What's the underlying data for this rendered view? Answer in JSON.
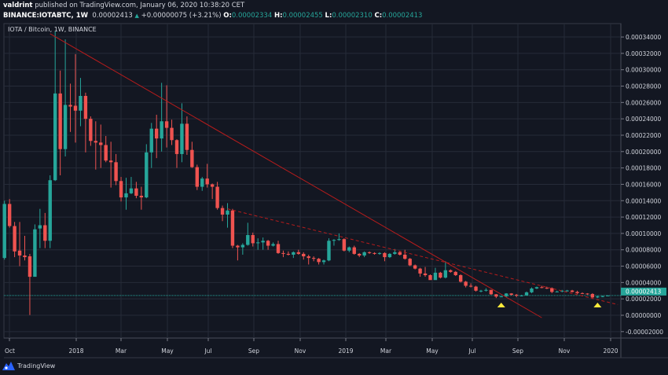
{
  "header": {
    "author": "valdrint",
    "published_text": "published on TradingView.com, January 06, 2020 10:38:20 CET",
    "symbol": "BINANCE:IOTABTC, 1W",
    "last_price": "0.00002413",
    "change_arrow": "▲",
    "change": "+0.00000075 (+3.21%)",
    "ohlc": [
      {
        "label": "O:",
        "value": "0.00002334"
      },
      {
        "label": "H:",
        "value": "0.00002455"
      },
      {
        "label": "L:",
        "value": "0.00002310"
      },
      {
        "label": "C:",
        "value": "0.00002413"
      }
    ]
  },
  "chart_legend": "IOTA / Bitcoin, 1W, BINANCE",
  "footer": {
    "brand": "TradingView"
  },
  "colors": {
    "background": "#131722",
    "up": "#26a69a",
    "down": "#ef5350",
    "trendline": "#b71c1c",
    "marker": "#ffeb3b",
    "grid": "#262b38"
  },
  "chart_data": {
    "type": "candlestick",
    "interval": "1W",
    "grid": true,
    "price_axis": {
      "position": "right",
      "range": [
        -2e-05,
        0.00035
      ],
      "ticks": [
        "0.00034000",
        "0.00032000",
        "0.00030000",
        "0.00028000",
        "0.00026000",
        "0.00024000",
        "0.00022000",
        "0.00020000",
        "0.00018000",
        "0.00016000",
        "0.00014000",
        "0.00012000",
        "0.00010000",
        "0.00008000",
        "0.00006000",
        "0.00004000",
        "0.00002000",
        "0.00000000",
        "-0.00002000"
      ]
    },
    "current_price_label": "0.00002413",
    "time_axis": {
      "ticks": [
        "Oct",
        "2018",
        "Mar",
        "May",
        "Jul",
        "Sep",
        "Nov",
        "2019",
        "Mar",
        "May",
        "Jul",
        "Sep",
        "Nov",
        "2020"
      ]
    },
    "ohlc": [
      [
        7e-05,
        0.00014,
        6.8e-05,
        0.000136
      ],
      [
        0.000136,
        0.000142,
        0.000107,
        0.000109
      ],
      [
        0.000109,
        0.000114,
        7.1e-05,
        7.8e-05
      ],
      [
        7.9e-05,
        0.000114,
        6e-05,
        7.3e-05
      ],
      [
        7.3e-05,
        9.7e-05,
        6.7e-05,
        7.1e-05
      ],
      [
        7.2e-05,
        7.5e-05,
        3e-07,
        4.7e-05
      ],
      [
        4.7e-05,
        0.000111,
        4.7e-05,
        0.000105
      ],
      [
        0.000106,
        0.00013,
        8.2e-05,
        0.00011
      ],
      [
        0.00011,
        0.000125,
        8.2e-05,
        9.1e-05
      ],
      [
        9.1e-05,
        0.000171,
        8.2e-05,
        0.000165
      ],
      [
        0.000165,
        0.000347,
        0.000164,
        0.000271
      ],
      [
        0.000271,
        0.000299,
        0.000171,
        0.000203
      ],
      [
        0.000203,
        0.000337,
        0.000194,
        0.000257
      ],
      [
        0.000257,
        0.000283,
        0.000224,
        0.000255
      ],
      [
        0.000256,
        0.000319,
        0.000211,
        0.00025
      ],
      [
        0.00025,
        0.00029,
        0.000231,
        0.000268
      ],
      [
        0.000268,
        0.000272,
        0.000199,
        0.00024
      ],
      [
        0.00024,
        0.000243,
        0.000207,
        0.000213
      ],
      [
        0.000213,
        0.000237,
        0.000178,
        0.000211
      ],
      [
        0.000211,
        0.000233,
        0.00018,
        0.000208
      ],
      [
        0.000208,
        0.000219,
        0.000187,
        0.000189
      ],
      [
        0.000189,
        0.000212,
        0.000156,
        0.000187
      ],
      [
        0.000187,
        0.000197,
        0.000159,
        0.000164
      ],
      [
        0.000164,
        0.000169,
        0.000139,
        0.000144
      ],
      [
        0.000144,
        0.000168,
        0.000129,
        0.000149
      ],
      [
        0.000149,
        0.000169,
        0.000148,
        0.000155
      ],
      [
        0.000155,
        0.000163,
        0.000143,
        0.000146
      ],
      [
        0.000146,
        0.000157,
        0.000129,
        0.000144
      ],
      [
        0.000144,
        0.000209,
        0.000143,
        0.000199
      ],
      [
        0.000199,
        0.000235,
        0.00018,
        0.000228
      ],
      [
        0.000228,
        0.000245,
        0.000192,
        0.000216
      ],
      [
        0.000216,
        0.000284,
        0.0002,
        0.000237
      ],
      [
        0.000237,
        0.000281,
        0.000205,
        0.000229
      ],
      [
        0.000229,
        0.000239,
        0.000208,
        0.000214
      ],
      [
        0.000214,
        0.000215,
        0.00018,
        0.000197
      ],
      [
        0.000197,
        0.000259,
        0.000187,
        0.000234
      ],
      [
        0.000234,
        0.000243,
        0.000196,
        0.000202
      ],
      [
        0.000202,
        0.000212,
        0.00018,
        0.000181
      ],
      [
        0.000181,
        0.000184,
        0.000153,
        0.000157
      ],
      [
        0.000157,
        0.000169,
        0.000152,
        0.000167
      ],
      [
        0.000167,
        0.000185,
        0.000156,
        0.00016
      ],
      [
        0.00016,
        0.000161,
        0.000142,
        0.000157
      ],
      [
        0.000157,
        0.000163,
        0.000129,
        0.000131
      ],
      [
        0.000131,
        0.000134,
        0.000115,
        0.000123
      ],
      [
        0.000123,
        0.000137,
        0.000107,
        0.000128
      ],
      [
        0.000128,
        0.00013,
        8.2e-05,
        8.5e-05
      ],
      [
        8.5e-05,
        8.6e-05,
        6.7e-05,
        8.3e-05
      ],
      [
        8.3e-05,
        8.8e-05,
        7.4e-05,
        8.6e-05
      ],
      [
        8.6e-05,
        0.000113,
        8.5e-05,
        9.8e-05
      ],
      [
        9.8e-05,
        0.000101,
        8.4e-05,
        8.8e-05
      ],
      [
        8.8e-05,
        9.4e-05,
        8e-05,
        8.9e-05
      ],
      [
        8.9e-05,
        9.5e-05,
        8e-05,
        9.1e-05
      ],
      [
        9.1e-05,
        9.2e-05,
        8e-05,
        8.5e-05
      ],
      [
        8.5e-05,
        8.9e-05,
        8.4e-05,
        8.7e-05
      ],
      [
        8.7e-05,
        9.1e-05,
        7.5e-05,
        7.6e-05
      ],
      [
        7.6e-05,
        7.9e-05,
        7.1e-05,
        7.5e-05
      ],
      [
        7.5e-05,
        7.8e-05,
        7.3e-05,
        7.4e-05
      ],
      [
        7.4e-05,
        7.8e-05,
        7e-05,
        7.7e-05
      ],
      [
        7.7e-05,
        8e-05,
        7.4e-05,
        7.5e-05
      ],
      [
        7.5e-05,
        7.7e-05,
        6.8e-05,
        7.2e-05
      ],
      [
        7.2e-05,
        7.4e-05,
        6.2e-05,
        7e-05
      ],
      [
        7e-05,
        7.2e-05,
        6.6e-05,
        6.9e-05
      ],
      [
        6.9e-05,
        7e-05,
        6.2e-05,
        6.5e-05
      ],
      [
        6.5e-05,
        6.8e-05,
        6.2e-05,
        6.7e-05
      ],
      [
        6.7e-05,
        9.4e-05,
        6.6e-05,
        9.1e-05
      ],
      [
        9.1e-05,
        9.3e-05,
        8.5e-05,
        9.2e-05
      ],
      [
        9.2e-05,
        0.0001,
        9.1e-05,
        9.3e-05
      ],
      [
        9.3e-05,
        9.4e-05,
        7.8e-05,
        7.9e-05
      ],
      [
        7.9e-05,
        8.4e-05,
        7.7e-05,
        8.3e-05
      ],
      [
        8.3e-05,
        8.5e-05,
        7.4e-05,
        7.5e-05
      ],
      [
        7.5e-05,
        7.6e-05,
        7.1e-05,
        7.3e-05
      ],
      [
        7.3e-05,
        7.8e-05,
        7.1e-05,
        7.7e-05
      ],
      [
        7.7e-05,
        7.8e-05,
        7.5e-05,
        7.6e-05
      ],
      [
        7.6e-05,
        7.7e-05,
        7.4e-05,
        7.5e-05
      ],
      [
        7.5e-05,
        7.7e-05,
        7.4e-05,
        7.6e-05
      ],
      [
        7.6e-05,
        7.7e-05,
        6.6e-05,
        7.1e-05
      ],
      [
        7.1e-05,
        7.6e-05,
        7e-05,
        7.5e-05
      ],
      [
        7.5e-05,
        8.1e-05,
        7.4e-05,
        7.7e-05
      ],
      [
        7.7e-05,
        7.8e-05,
        7.3e-05,
        7.4e-05
      ],
      [
        7.4e-05,
        8e-05,
        6.8e-05,
        6.9e-05
      ],
      [
        6.9e-05,
        7e-05,
        6e-05,
        6.1e-05
      ],
      [
        6.1e-05,
        6.2e-05,
        5.6e-05,
        5.7e-05
      ],
      [
        5.7e-05,
        5.8e-05,
        4.7e-05,
        5.1e-05
      ],
      [
        5.1e-05,
        5.9e-05,
        4.7e-05,
        4.9e-05
      ],
      [
        4.9e-05,
        5e-05,
        4.5e-05,
        4.3e-05
      ],
      [
        4.3e-05,
        5.8e-05,
        4.4e-05,
        5.2e-05
      ],
      [
        5.2e-05,
        5.3e-05,
        4.5e-05,
        4.6e-05
      ],
      [
        4.6e-05,
        6.6e-05,
        4.5e-05,
        5.5e-05
      ],
      [
        5.5e-05,
        5.6e-05,
        5.2e-05,
        5.3e-05
      ],
      [
        5.3e-05,
        5.4e-05,
        4.8e-05,
        4.9e-05
      ],
      [
        4.9e-05,
        5e-05,
        4e-05,
        4.1e-05
      ],
      [
        4.1e-05,
        4.2e-05,
        3.4e-05,
        3.6e-05
      ],
      [
        3.6e-05,
        3.9e-05,
        3.4e-05,
        3.5e-05
      ],
      [
        3.5e-05,
        3.6e-05,
        2.9e-05,
        3e-05
      ],
      [
        3e-05,
        3.1e-05,
        2.8e-05,
        3e-05
      ],
      [
        3e-05,
        3.3e-05,
        2.9e-05,
        3.1e-05
      ],
      [
        3.1e-05,
        3.1e-05,
        2.5e-05,
        2.56e-05
      ],
      [
        2.56e-05,
        2.6e-05,
        2.1e-05,
        2.28e-05
      ],
      [
        2.28e-05,
        2.4e-05,
        2.2e-05,
        2.3e-05
      ],
      [
        2.3e-05,
        2.7e-05,
        2.2e-05,
        2.66e-05
      ],
      [
        2.66e-05,
        2.7e-05,
        2.4e-05,
        2.5e-05
      ],
      [
        2.5e-05,
        2.6e-05,
        2.2e-05,
        2.4e-05
      ],
      [
        2.4e-05,
        2.5e-05,
        2.3e-05,
        2.42e-05
      ],
      [
        2.42e-05,
        2.9e-05,
        2.4e-05,
        2.8e-05
      ],
      [
        2.8e-05,
        3.4e-05,
        2.7e-05,
        3.27e-05
      ],
      [
        3.27e-05,
        3.5e-05,
        3.2e-05,
        3.43e-05
      ],
      [
        3.43e-05,
        3.6e-05,
        3.3e-05,
        3.35e-05
      ],
      [
        3.35e-05,
        3.5e-05,
        3.2e-05,
        3.3e-05
      ],
      [
        3.3e-05,
        3.4e-05,
        2.7e-05,
        2.85e-05
      ],
      [
        2.85e-05,
        3e-05,
        2.8e-05,
        2.9e-05
      ],
      [
        2.9e-05,
        3.1e-05,
        2.8e-05,
        3e-05
      ],
      [
        3e-05,
        3.1e-05,
        2.9e-05,
        3.02e-05
      ],
      [
        3.02e-05,
        3.1e-05,
        2.8e-05,
        2.85e-05
      ],
      [
        2.85e-05,
        3e-05,
        2.6e-05,
        2.7e-05
      ],
      [
        2.7e-05,
        2.8e-05,
        2.6e-05,
        2.65e-05
      ],
      [
        2.65e-05,
        2.7e-05,
        2.5e-05,
        2.6e-05
      ],
      [
        2.6e-05,
        2.7e-05,
        2e-05,
        2.18e-05
      ],
      [
        2.18e-05,
        2.4e-05,
        2.1e-05,
        2.3e-05
      ],
      [
        2.3e-05,
        2.4e-05,
        2.2e-05,
        2.33e-05
      ],
      [
        2.334e-05,
        2.455e-05,
        2.31e-05,
        2.413e-05
      ]
    ],
    "trendlines": [
      {
        "style": "solid",
        "points": [
          [
            9,
            0.000344
          ],
          [
            106,
            -3e-06
          ]
        ]
      },
      {
        "style": "dashed",
        "points": [
          [
            44,
            0.00013
          ],
          [
            121,
            1.3e-05
          ]
        ]
      }
    ],
    "markers": [
      {
        "shape": "triangle-up",
        "week": 98
      },
      {
        "shape": "triangle-up",
        "week": 117
      }
    ]
  }
}
